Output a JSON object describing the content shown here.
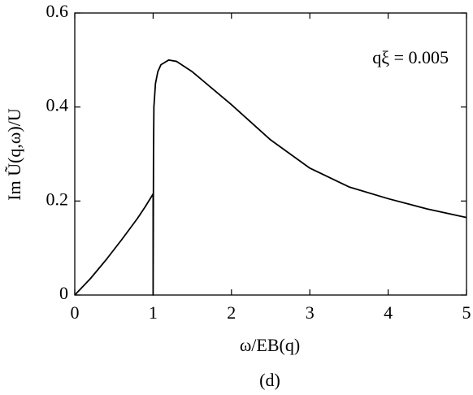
{
  "chart_data": {
    "type": "line",
    "x_label": "ω/EB(q)",
    "y_label": "Im Ũ(q,ω)/U",
    "annotation": "qξ = 0.005",
    "caption": "(d)",
    "x": [
      0,
      0.2,
      0.4,
      0.6,
      0.8,
      0.9,
      1.0,
      1.0,
      1.005,
      1.01,
      1.03,
      1.06,
      1.1,
      1.2,
      1.3,
      1.5,
      1.75,
      2.0,
      2.5,
      3.0,
      3.5,
      4.0,
      4.5,
      5.0
    ],
    "series": [
      {
        "name": "Im U",
        "color": "#000000",
        "values": [
          0,
          0.035,
          0.075,
          0.118,
          0.163,
          0.188,
          0.215,
          0,
          0.3,
          0.4,
          0.45,
          0.475,
          0.49,
          0.5,
          0.497,
          0.475,
          0.44,
          0.405,
          0.33,
          0.27,
          0.23,
          0.205,
          0.183,
          0.165
        ]
      }
    ],
    "xlim": [
      0,
      5
    ],
    "ylim": [
      0,
      0.6
    ],
    "xticks": [
      0,
      1,
      2,
      3,
      4,
      5
    ],
    "yticks": [
      0,
      0.2,
      0.4,
      0.6
    ],
    "grid": false
  }
}
